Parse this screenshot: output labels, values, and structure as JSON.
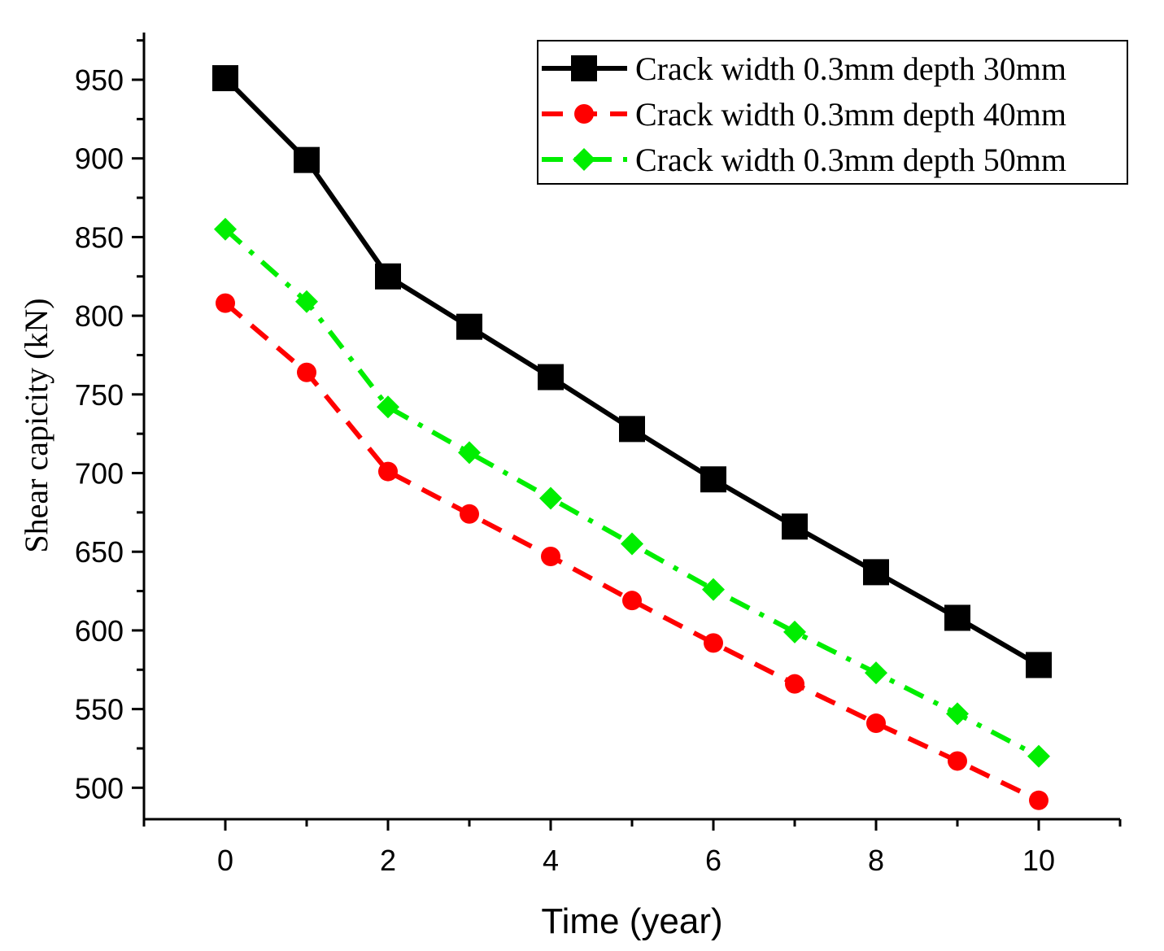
{
  "chart_data": {
    "type": "line",
    "title": "",
    "xlabel": "Time (year)",
    "ylabel": "Shear capicity (kN)",
    "xlim": [
      -1,
      11
    ],
    "ylim": [
      480,
      980
    ],
    "x_ticks": [
      0,
      2,
      4,
      6,
      8,
      10
    ],
    "y_ticks": [
      500,
      550,
      600,
      650,
      700,
      750,
      800,
      850,
      900,
      950
    ],
    "x_minor_ticks": [
      -1,
      1,
      3,
      5,
      7,
      9,
      11
    ],
    "y_minor_ticks": [
      525,
      575,
      625,
      675,
      725,
      775,
      825,
      875,
      925,
      975
    ],
    "legend_position": "top-right",
    "grid": false,
    "x": [
      0,
      1,
      2,
      3,
      4,
      5,
      6,
      7,
      8,
      9,
      10
    ],
    "series": [
      {
        "name": "Crack width 0.3mm depth 30mm",
        "color": "#000000",
        "marker": "square",
        "line_style": "solid",
        "values": [
          951,
          899,
          825,
          793,
          761,
          728,
          696,
          666,
          637,
          608,
          578
        ]
      },
      {
        "name": "Crack width 0.3mm depth 40mm",
        "color": "#ff0000",
        "marker": "circle",
        "line_style": "dash",
        "values": [
          808,
          764,
          701,
          674,
          647,
          619,
          592,
          566,
          541,
          517,
          492
        ]
      },
      {
        "name": "Crack width 0.3mm depth 50mm",
        "color": "#00ee00",
        "marker": "diamond",
        "line_style": "dash-dot",
        "values": [
          855,
          809,
          742,
          713,
          684,
          655,
          626,
          599,
          573,
          547,
          520
        ]
      }
    ]
  }
}
